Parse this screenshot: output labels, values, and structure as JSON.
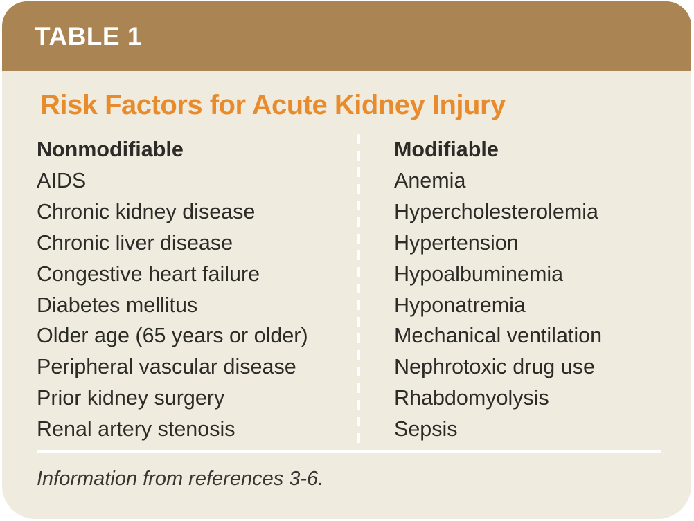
{
  "card": {
    "label": "TABLE 1",
    "title": "Risk Factors for Acute Kidney Injury",
    "footnote": "Information from references 3-6."
  },
  "columns": [
    {
      "header": "Nonmodifiable",
      "items": [
        "AIDS",
        "Chronic kidney disease",
        "Chronic liver disease",
        "Congestive heart failure",
        "Diabetes mellitus",
        "Older age (65 years or older)",
        "Peripheral vascular disease",
        "Prior kidney surgery",
        "Renal artery stenosis"
      ]
    },
    {
      "header": "Modifiable",
      "items": [
        "Anemia",
        "Hypercholesterolemia",
        "Hypertension",
        "Hypoalbuminemia",
        "Hyponatremia",
        "Mechanical ventilation",
        "Nephrotoxic drug use",
        "Rhabdomyolysis",
        "Sepsis"
      ]
    }
  ],
  "colors": {
    "header_bar": "#aa8453",
    "title_accent": "#e78b2d",
    "card_background": "#f0ebdf",
    "body_text": "#2d2b28",
    "divider": "#ffffff",
    "footnote_text": "#383633"
  }
}
